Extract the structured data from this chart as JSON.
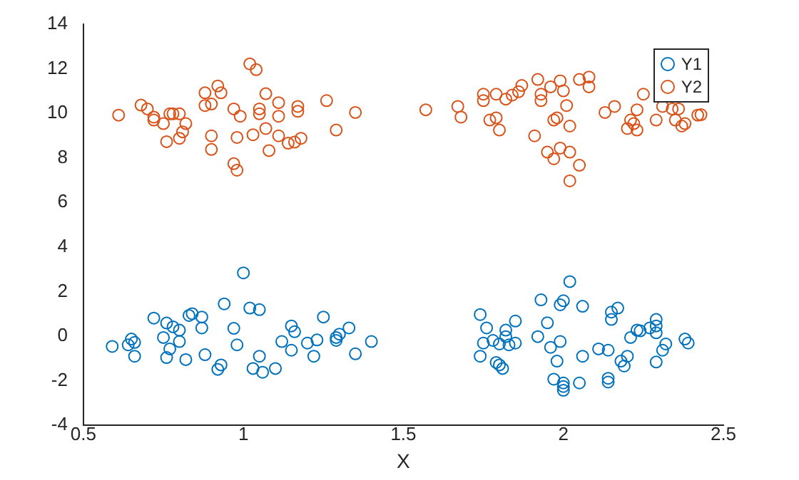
{
  "chart_data": {
    "type": "scatter",
    "xlabel": "X",
    "xlim": [
      0.5,
      2.5
    ],
    "xticks": [
      0.5,
      1,
      1.5,
      2,
      2.5
    ],
    "ylim": [
      -4,
      14
    ],
    "yticks": [
      -4,
      -2,
      0,
      2,
      4,
      6,
      8,
      10,
      12,
      14
    ],
    "grid": false,
    "legend": "top right",
    "marker": "circle",
    "series": [
      {
        "name": "Y1",
        "color": "#0072bd",
        "x": [
          0.59,
          0.64,
          0.65,
          0.66,
          0.66,
          0.72,
          0.75,
          0.76,
          0.77,
          0.76,
          0.78,
          0.8,
          0.8,
          0.82,
          0.83,
          0.84,
          0.87,
          0.87,
          0.88,
          0.92,
          0.93,
          0.94,
          0.97,
          0.98,
          1.0,
          1.02,
          1.05,
          1.05,
          1.03,
          1.06,
          1.1,
          1.12,
          1.15,
          1.15,
          1.16,
          1.2,
          1.22,
          1.23,
          1.25,
          1.29,
          1.29,
          1.3,
          1.33,
          1.35,
          1.4,
          1.74,
          1.76,
          1.75,
          1.74,
          1.78,
          1.8,
          1.82,
          1.82,
          1.83,
          1.85,
          1.85,
          1.79,
          1.8,
          1.81,
          1.93,
          1.92,
          1.95,
          1.96,
          1.99,
          1.98,
          1.99,
          2.0,
          2.02,
          1.97,
          2.0,
          2.0,
          2.0,
          2.05,
          2.06,
          2.06,
          2.11,
          2.14,
          2.14,
          2.14,
          2.15,
          2.17,
          2.15,
          2.18,
          2.19,
          2.2,
          2.21,
          2.23,
          2.24,
          2.27,
          2.29,
          2.29,
          2.29,
          2.32,
          2.31,
          2.29,
          2.38,
          2.39
        ],
        "values": [
          -0.46,
          -0.39,
          -0.13,
          -0.28,
          -0.9,
          0.81,
          -0.06,
          0.59,
          -0.57,
          -0.96,
          0.42,
          0.27,
          -0.24,
          -1.05,
          0.93,
          1.01,
          0.86,
          0.37,
          -0.83,
          -1.49,
          -1.29,
          1.45,
          0.35,
          -0.39,
          2.84,
          1.26,
          1.19,
          -0.9,
          -1.45,
          -1.62,
          -1.45,
          -0.24,
          0.46,
          -0.63,
          0.2,
          -0.31,
          -0.9,
          -0.17,
          0.86,
          -0.19,
          -0.06,
          0.09,
          0.37,
          -0.79,
          -0.24,
          0.97,
          0.37,
          -0.31,
          -0.9,
          -0.19,
          -0.35,
          0.27,
          -0.02,
          -0.39,
          -0.31,
          0.68,
          -1.18,
          -1.29,
          -1.45,
          1.63,
          -0.02,
          0.6,
          -0.5,
          -0.24,
          -1.12,
          1.41,
          1.59,
          2.45,
          -1.93,
          -2.1,
          -2.26,
          -2.43,
          -2.1,
          1.34,
          -0.9,
          -0.57,
          -0.63,
          -1.89,
          -2.06,
          1.08,
          1.26,
          0.75,
          -1.12,
          -1.34,
          -0.9,
          -0.06,
          0.27,
          0.24,
          0.37,
          0.75,
          0.46,
          0.15,
          -0.35,
          -0.63,
          -1.16,
          -0.13,
          -0.31
        ]
      },
      {
        "name": "Y2",
        "color": "#d95319",
        "x": [
          0.61,
          0.68,
          0.7,
          0.72,
          0.72,
          0.75,
          0.76,
          0.77,
          0.78,
          0.8,
          0.8,
          0.81,
          0.82,
          0.88,
          0.88,
          0.9,
          0.92,
          0.93,
          0.9,
          0.9,
          0.97,
          0.99,
          0.98,
          0.97,
          0.98,
          1.02,
          1.04,
          1.03,
          1.05,
          1.05,
          1.07,
          1.07,
          1.08,
          1.11,
          1.11,
          1.11,
          1.14,
          1.17,
          1.17,
          1.16,
          1.18,
          1.26,
          1.29,
          1.35,
          1.57,
          1.67,
          1.68,
          1.75,
          1.75,
          1.77,
          1.79,
          1.79,
          1.8,
          1.82,
          1.84,
          1.87,
          1.86,
          1.91,
          1.92,
          1.93,
          1.93,
          1.96,
          1.95,
          1.97,
          1.97,
          1.98,
          1.99,
          1.99,
          2.0,
          2.01,
          2.02,
          2.02,
          2.05,
          2.05,
          2.08,
          2.08,
          2.02,
          2.13,
          2.16,
          2.25,
          2.21,
          2.22,
          2.23,
          2.2,
          2.23,
          2.29,
          2.31,
          2.34,
          2.36,
          2.35,
          2.37,
          2.38,
          2.42,
          2.43
        ],
        "values": [
          9.92,
          10.37,
          10.2,
          9.83,
          9.7,
          9.54,
          8.73,
          9.98,
          9.98,
          9.98,
          8.88,
          9.17,
          9.54,
          10.92,
          10.35,
          10.42,
          11.23,
          10.92,
          8.99,
          8.38,
          10.2,
          9.87,
          8.92,
          7.74,
          7.45,
          12.22,
          11.96,
          9.04,
          10.2,
          9.98,
          10.88,
          9.32,
          8.33,
          9.87,
          10.48,
          8.99,
          8.66,
          10.09,
          10.31,
          8.71,
          8.88,
          10.57,
          9.25,
          10.04,
          10.16,
          10.31,
          9.83,
          10.57,
          10.86,
          9.7,
          9.8,
          10.86,
          9.25,
          10.64,
          10.82,
          11.25,
          10.97,
          8.99,
          11.52,
          10.57,
          10.86,
          11.19,
          8.26,
          7.96,
          9.7,
          9.8,
          8.44,
          11.46,
          11.01,
          10.35,
          9.43,
          8.26,
          11.52,
          7.67,
          11.63,
          11.19,
          6.97,
          10.04,
          10.31,
          10.86,
          9.7,
          9.54,
          10.16,
          9.32,
          9.25,
          9.7,
          10.31,
          10.2,
          10.2,
          9.7,
          9.43,
          9.54,
          9.92,
          9.94
        ]
      }
    ]
  }
}
